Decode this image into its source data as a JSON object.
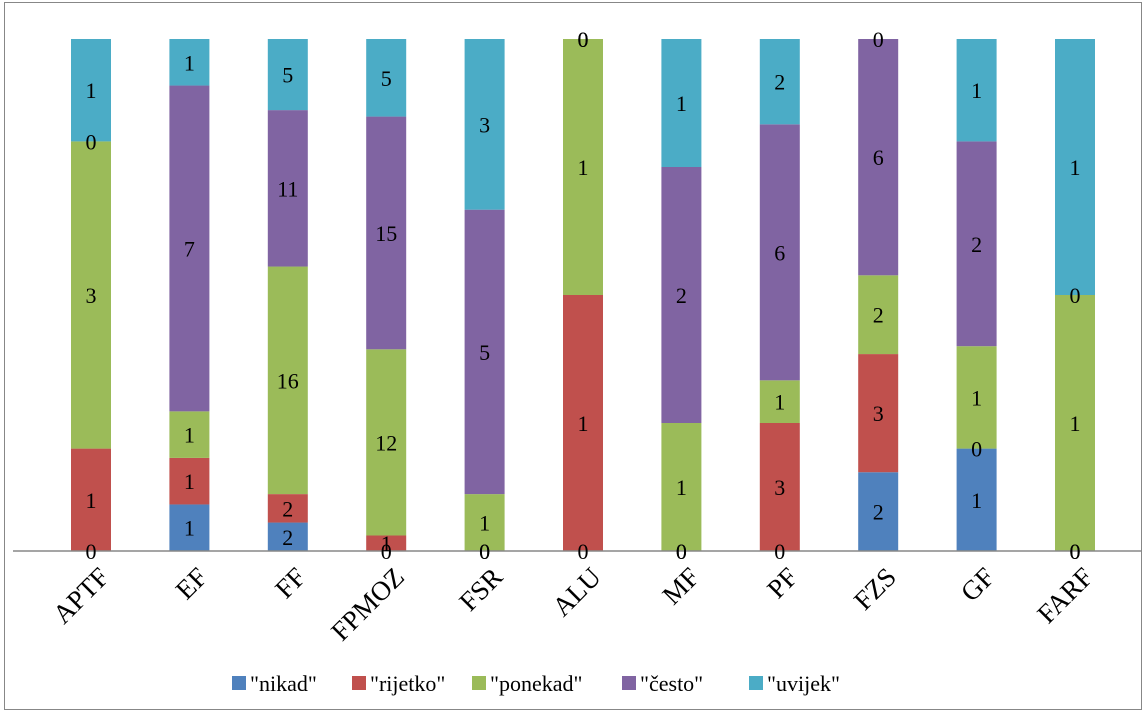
{
  "chart_data": {
    "type": "bar",
    "stacked": "100%",
    "categories": [
      "APTF",
      "EF",
      "FF",
      "FPMOZ",
      "FSR",
      "ALU",
      "MF",
      "PF",
      "FZS",
      "GF",
      "FARF"
    ],
    "series": [
      {
        "name": "\"nikad\"",
        "color": "#4F81BD",
        "values": [
          0,
          1,
          2,
          0,
          0,
          0,
          0,
          0,
          2,
          1,
          0
        ]
      },
      {
        "name": "\"rijetko\"",
        "color": "#C0504D",
        "values": [
          1,
          1,
          2,
          1,
          0,
          1,
          0,
          3,
          3,
          0,
          0
        ]
      },
      {
        "name": "\"ponekad\"",
        "color": "#9BBB59",
        "values": [
          3,
          1,
          16,
          12,
          1,
          1,
          1,
          1,
          2,
          1,
          1
        ]
      },
      {
        "name": "\"često\"",
        "color": "#8064A2",
        "values": [
          0,
          7,
          11,
          15,
          5,
          0,
          2,
          6,
          6,
          2,
          0
        ]
      },
      {
        "name": "\"uvijek\"",
        "color": "#4BACC6",
        "values": [
          1,
          1,
          5,
          5,
          3,
          0,
          1,
          2,
          0,
          1,
          1
        ]
      }
    ],
    "ylim": [
      0,
      100
    ],
    "grid": false,
    "legend_position": "bottom",
    "title": "",
    "xlabel": "",
    "ylabel": ""
  }
}
